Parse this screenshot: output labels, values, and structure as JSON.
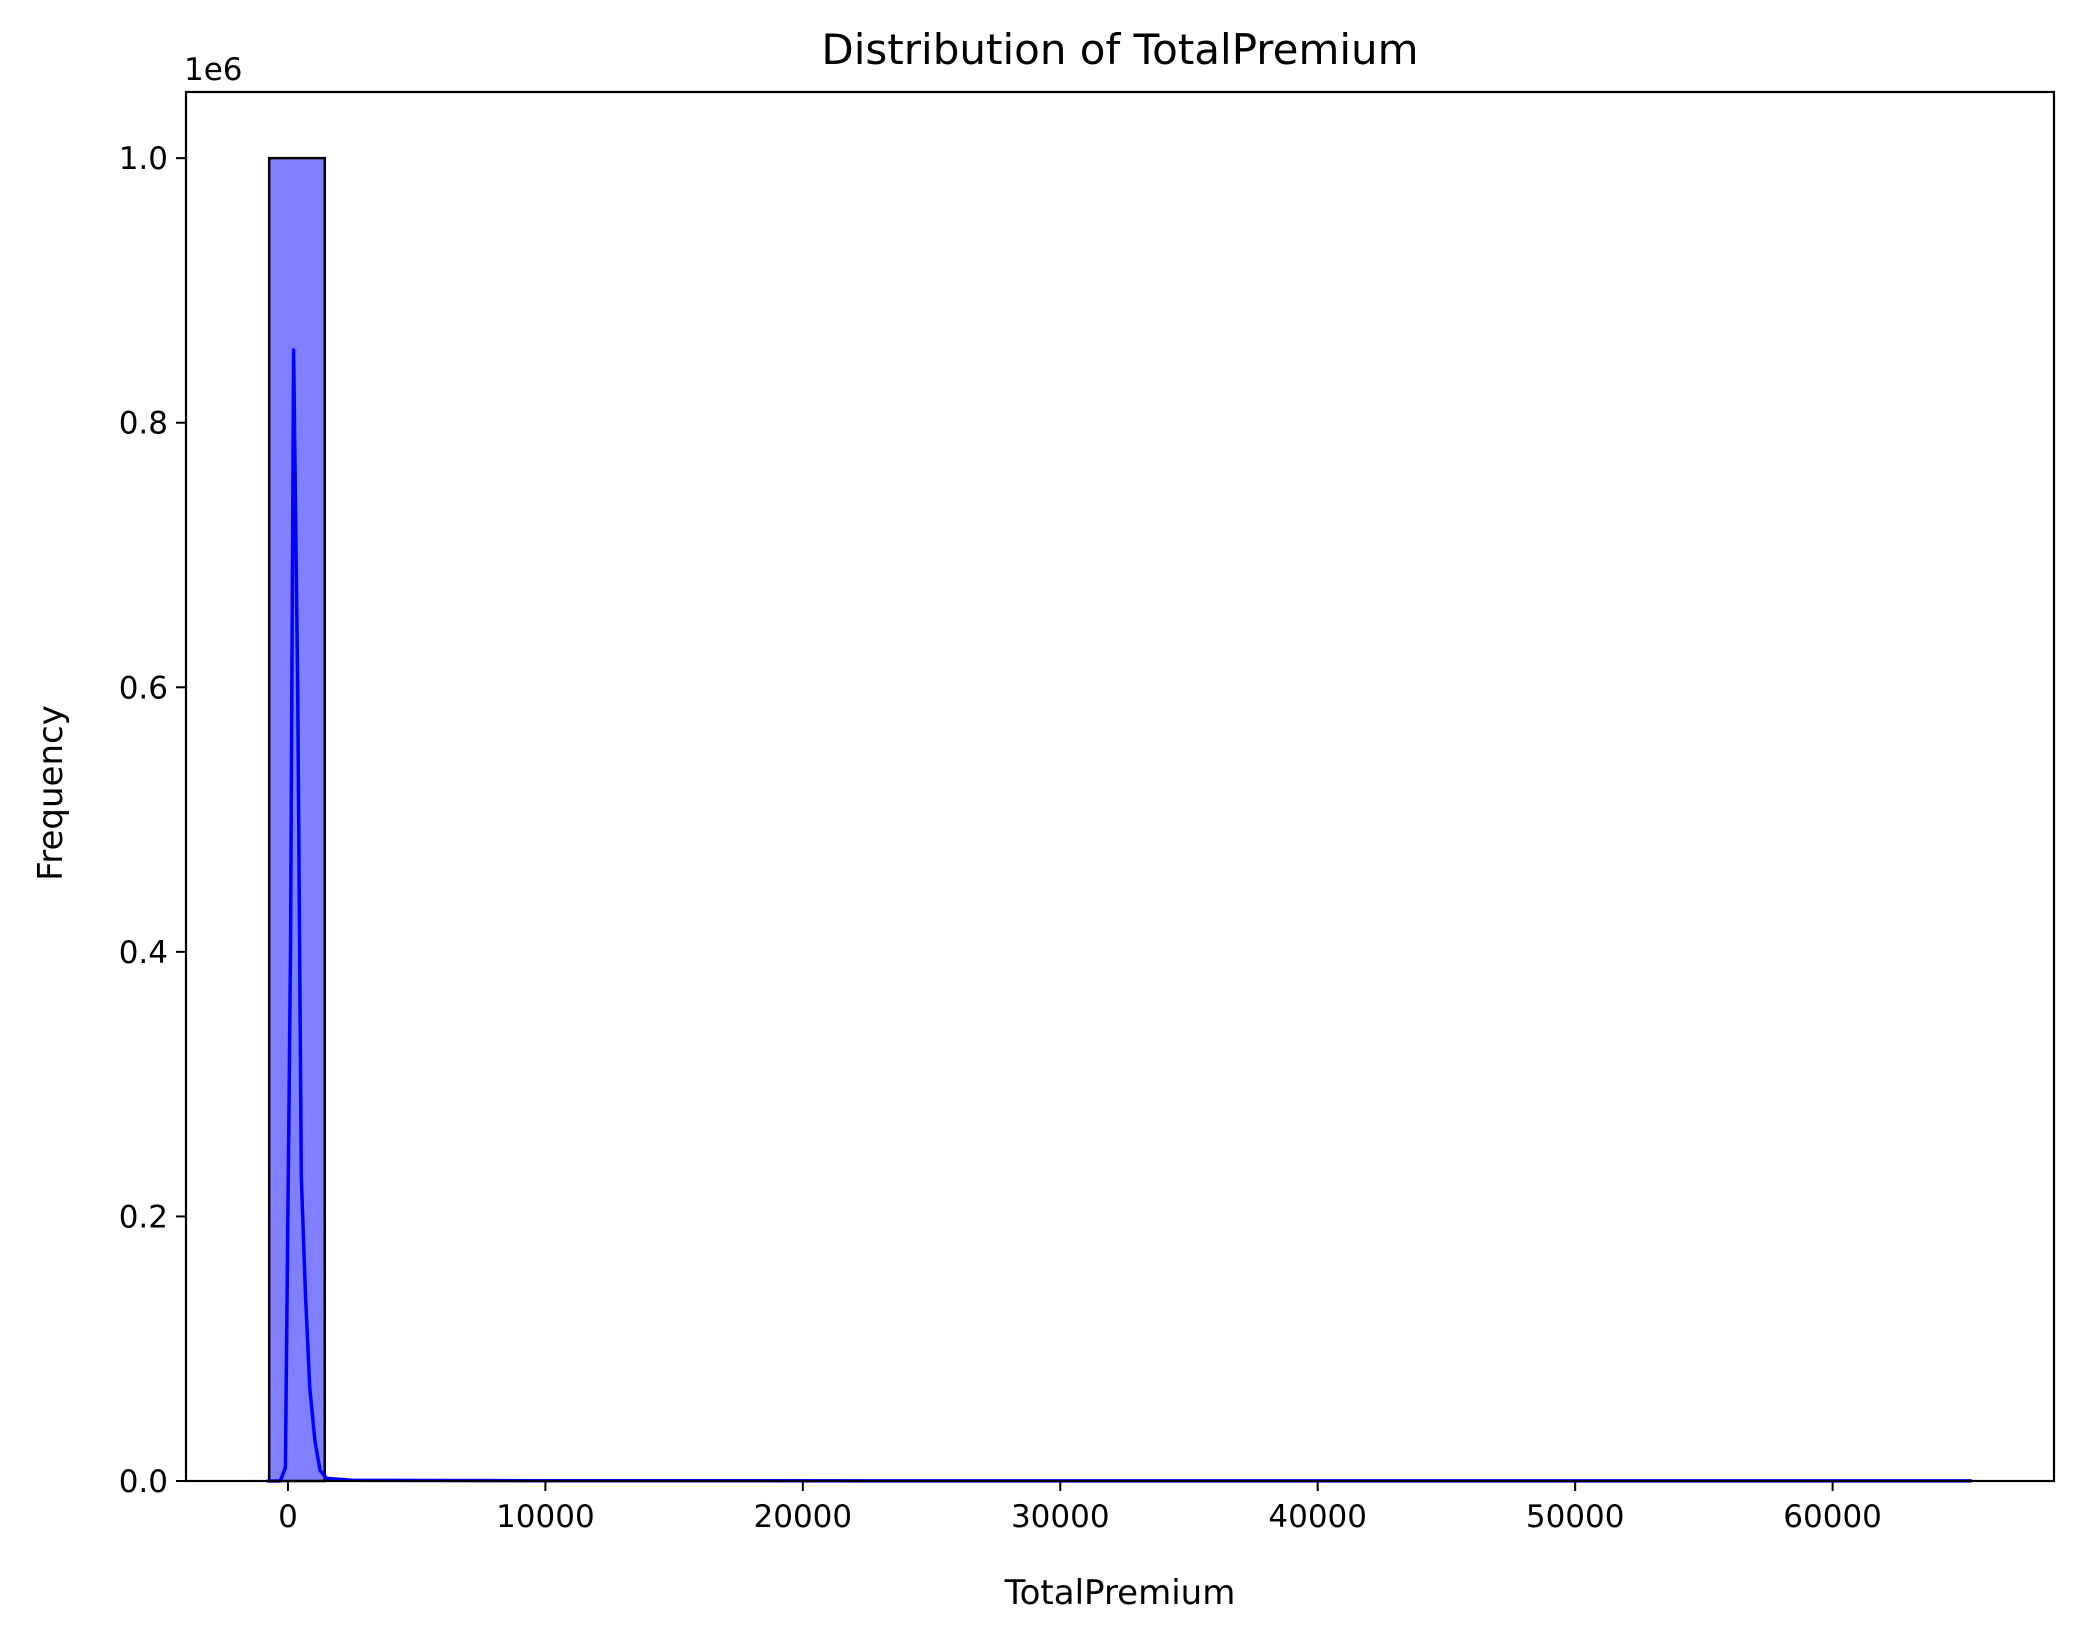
{
  "chart_data": {
    "type": "bar",
    "title": "Distribution of TotalPremium",
    "xlabel": "TotalPremium",
    "ylabel": "Frequency",
    "y_offset_label": "1e6",
    "xlim": [
      -3960,
      68600
    ],
    "ylim": [
      0,
      1.05
    ],
    "x_ticks": [
      0,
      10000,
      20000,
      30000,
      40000,
      50000,
      60000
    ],
    "x_tick_labels": [
      "0",
      "10000",
      "20000",
      "30000",
      "40000",
      "50000",
      "60000"
    ],
    "y_ticks": [
      0,
      0.2,
      0.4,
      0.6,
      0.8,
      1.0
    ],
    "y_tick_labels": [
      "0.0",
      "0.2",
      "0.4",
      "0.6",
      "0.8",
      "1.0"
    ],
    "bins": [
      {
        "x0": -730,
        "x1": 1430,
        "value": 1.0
      }
    ],
    "kde": {
      "x": [
        -820,
        -500,
        -300,
        -100,
        100,
        220,
        380,
        520,
        680,
        850,
        1050,
        1250,
        1500,
        2500,
        10000,
        30000,
        50000,
        65400
      ],
      "y": [
        0,
        0,
        0,
        0.01,
        0.4,
        0.855,
        0.6,
        0.23,
        0.14,
        0.07,
        0.03,
        0.008,
        0.002,
        0.0005,
        0.0002,
        0.0001,
        0.0001,
        0.0001
      ]
    },
    "grid": false,
    "legend": false,
    "colors": {
      "bar_fill": "#8080ff",
      "bar_edge": "#000000",
      "kde_line": "#0000ff"
    }
  }
}
